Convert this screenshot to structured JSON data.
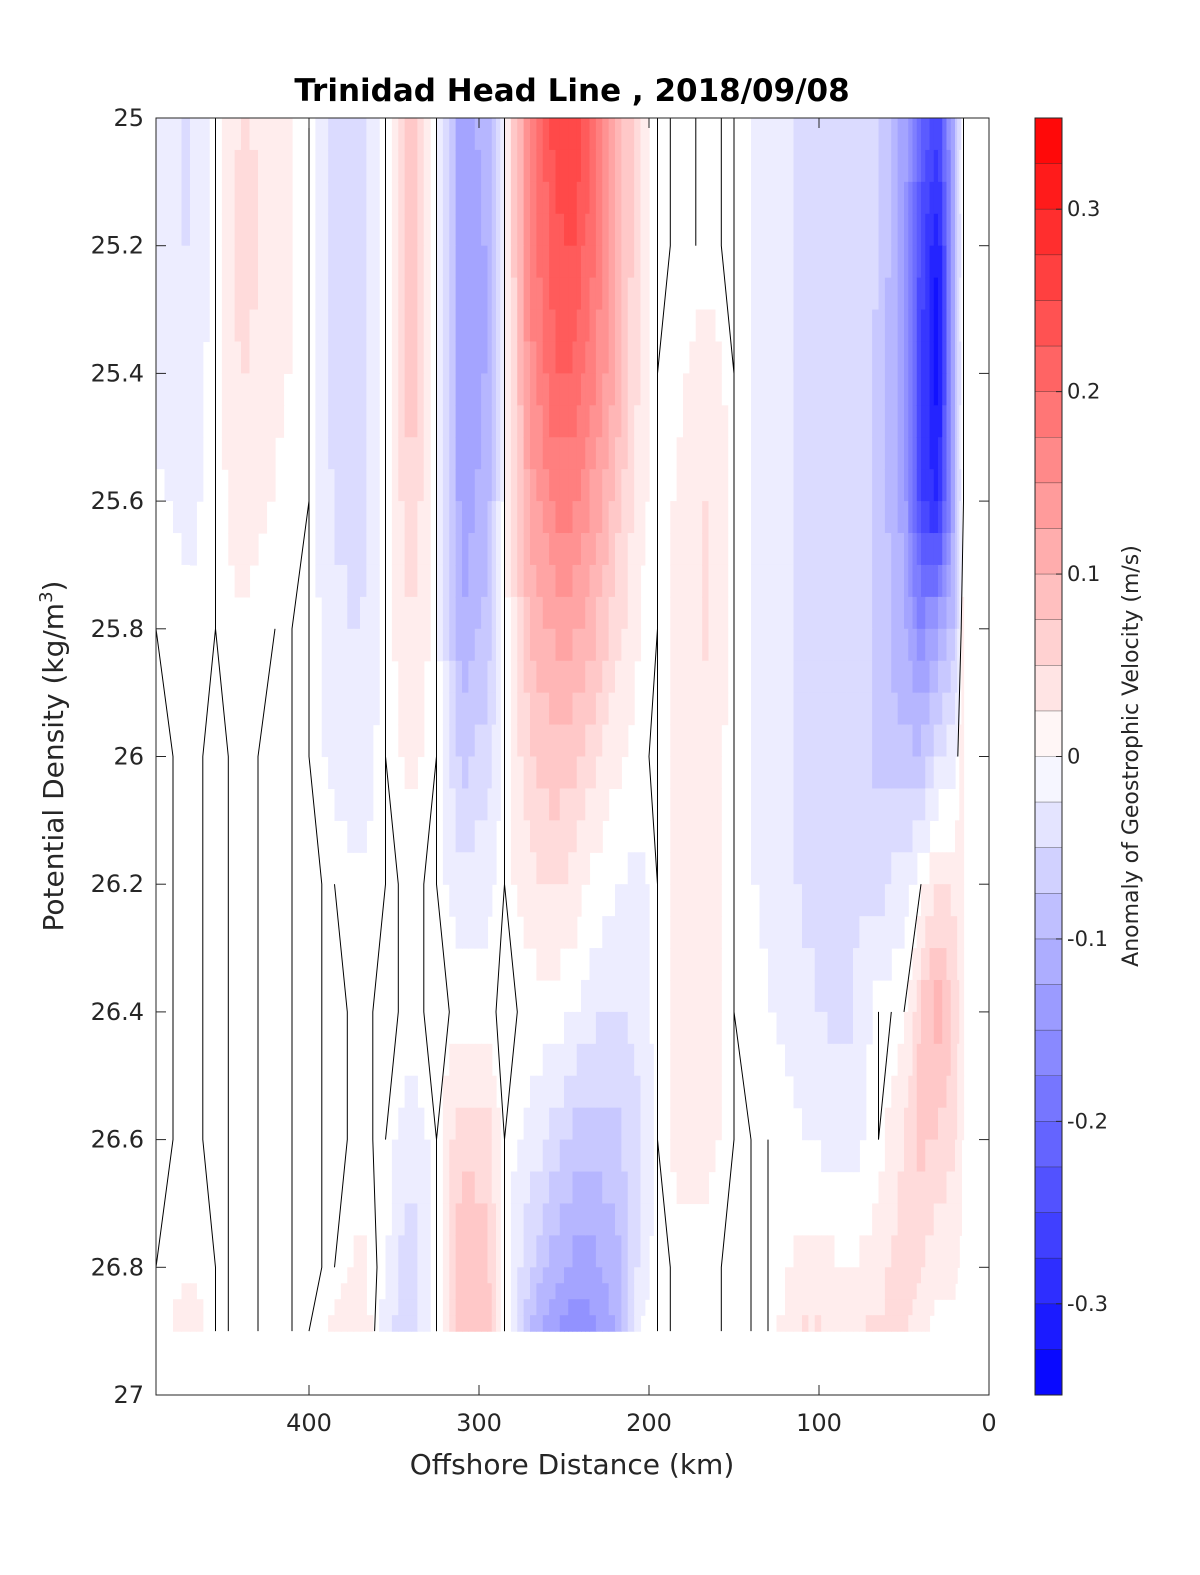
{
  "chart_data": {
    "type": "heatmap",
    "title": "Trinidad Head Line , 2018/09/08",
    "xlabel": "Offshore Distance (km)",
    "ylabel_main": "Potential Density (kg/m",
    "ylabel_sup": "3",
    "ylabel_close": ")",
    "xlim": [
      490,
      0
    ],
    "ylim": [
      25,
      27
    ],
    "y_reversed": true,
    "x_reversed": true,
    "x_ticks": [
      400,
      300,
      200,
      100,
      0
    ],
    "x_tick_labels": [
      "400",
      "300",
      "200",
      "100",
      "0"
    ],
    "y_ticks": [
      25,
      25.2,
      25.4,
      25.6,
      25.8,
      26,
      26.2,
      26.4,
      26.6,
      26.8,
      27
    ],
    "y_tick_labels": [
      "25",
      "25.2",
      "25.4",
      "25.6",
      "25.8",
      "26",
      "26.2",
      "26.4",
      "26.6",
      "26.8",
      "27"
    ],
    "colorbar": {
      "label": "Anomaly of Geostrophic Velocity (m/s)",
      "range": [
        -0.35,
        0.35
      ],
      "step": 0.025,
      "ticks": [
        0.3,
        0.2,
        0.1,
        0,
        -0.1,
        -0.2,
        -0.3
      ],
      "tick_labels": [
        "0.3",
        "0.2",
        "0.1",
        "0",
        "-0.1",
        "-0.2",
        "-0.3"
      ],
      "neg_color": "#0000ff",
      "pos_color": "#ff0000",
      "mid_color": "#ffffff"
    },
    "data_y_max": 26.9,
    "grid": false,
    "field": {
      "stations_km": [
        490,
        470,
        455,
        440,
        420,
        400,
        385,
        370,
        355,
        340,
        325,
        310,
        295,
        285,
        270,
        255,
        245,
        235,
        220,
        205,
        195,
        180,
        165,
        150,
        130,
        110,
        95,
        80,
        65,
        50,
        40,
        30,
        20,
        15
      ],
      "density_levels": [
        25.0,
        25.2,
        25.4,
        25.6,
        25.8,
        26.0,
        26.2,
        26.4,
        26.6,
        26.8,
        26.9
      ],
      "velocity": [
        [
          -0.03,
          -0.03,
          -0.02,
          -0.01,
          0.0,
          0.0,
          0.0,
          0.0,
          0.0,
          0.0,
          0.0
        ],
        [
          -0.04,
          -0.04,
          -0.03,
          -0.02,
          -0.01,
          0.0,
          0.0,
          0.0,
          0.0,
          0.01,
          0.03
        ],
        [
          0.0,
          0.0,
          0.0,
          0.0,
          0.0,
          0.0,
          0.0,
          0.0,
          0.0,
          0.0,
          0.0
        ],
        [
          0.04,
          0.05,
          0.04,
          0.03,
          0.01,
          0.0,
          0.0,
          0.0,
          0.0,
          0.0,
          0.0
        ],
        [
          0.03,
          0.03,
          0.02,
          0.01,
          0.0,
          0.0,
          0.0,
          0.0,
          0.0,
          0.0,
          0.0
        ],
        [
          0.0,
          0.0,
          0.0,
          0.0,
          0.0,
          0.0,
          0.0,
          0.0,
          0.0,
          0.0,
          0.0
        ],
        [
          -0.05,
          -0.05,
          -0.05,
          -0.04,
          -0.03,
          -0.02,
          0.0,
          0.0,
          0.0,
          0.0,
          0.02
        ],
        [
          -0.06,
          -0.06,
          -0.06,
          -0.05,
          -0.04,
          -0.03,
          -0.01,
          0.0,
          0.0,
          0.02,
          0.04
        ],
        [
          0.0,
          0.0,
          0.0,
          0.0,
          0.0,
          0.0,
          0.0,
          0.0,
          0.0,
          -0.01,
          -0.03
        ],
        [
          0.09,
          0.09,
          0.08,
          0.06,
          0.04,
          0.02,
          0.0,
          0.0,
          -0.03,
          -0.06,
          -0.06
        ],
        [
          0.0,
          0.0,
          0.0,
          0.0,
          0.0,
          0.0,
          0.0,
          0.0,
          0.0,
          0.0,
          0.0
        ],
        [
          -0.13,
          -0.14,
          -0.14,
          -0.13,
          -0.11,
          -0.07,
          -0.03,
          0.0,
          0.06,
          0.08,
          0.09
        ],
        [
          -0.1,
          -0.11,
          -0.11,
          -0.1,
          -0.08,
          -0.05,
          -0.02,
          0.0,
          0.05,
          0.07,
          0.08
        ],
        [
          0.0,
          0.0,
          0.0,
          0.0,
          0.0,
          0.0,
          0.0,
          0.0,
          0.0,
          0.0,
          0.0
        ],
        [
          0.17,
          0.17,
          0.15,
          0.12,
          0.09,
          0.06,
          0.03,
          0.0,
          -0.02,
          -0.06,
          -0.09
        ],
        [
          0.25,
          0.23,
          0.21,
          0.17,
          0.12,
          0.08,
          0.04,
          0.0,
          -0.05,
          -0.1,
          -0.14
        ],
        [
          0.26,
          0.24,
          0.21,
          0.17,
          0.12,
          0.07,
          0.03,
          -0.01,
          -0.07,
          -0.12,
          -0.16
        ],
        [
          0.22,
          0.2,
          0.18,
          0.14,
          0.1,
          0.05,
          0.01,
          -0.03,
          -0.08,
          -0.12,
          -0.15
        ],
        [
          0.12,
          0.12,
          0.11,
          0.08,
          0.05,
          0.02,
          -0.01,
          -0.04,
          -0.07,
          -0.1,
          -0.11
        ],
        [
          0.03,
          0.03,
          0.03,
          0.02,
          0.01,
          0.0,
          -0.02,
          -0.03,
          -0.04,
          -0.03,
          -0.01
        ],
        [
          0.0,
          0.0,
          0.0,
          0.0,
          0.0,
          0.0,
          0.0,
          0.0,
          0.0,
          0.0,
          0.0
        ],
        [
          0.0,
          0.0,
          0.01,
          0.02,
          0.03,
          0.03,
          0.03,
          0.02,
          0.03,
          0.0,
          0.0
        ],
        [
          0.0,
          0.0,
          0.03,
          0.04,
          0.04,
          0.03,
          0.02,
          0.02,
          0.02,
          0.0,
          0.0
        ],
        [
          0.0,
          0.0,
          0.0,
          0.0,
          0.0,
          0.0,
          0.0,
          0.0,
          0.0,
          0.0,
          0.0
        ],
        [
          -0.03,
          -0.03,
          -0.03,
          -0.03,
          -0.03,
          -0.03,
          -0.02,
          -0.01,
          0.0,
          0.0,
          0.0
        ],
        [
          -0.04,
          -0.04,
          -0.04,
          -0.04,
          -0.04,
          -0.04,
          -0.04,
          -0.03,
          -0.01,
          0.02,
          0.04
        ],
        [
          -0.04,
          -0.04,
          -0.05,
          -0.05,
          -0.05,
          -0.05,
          -0.05,
          -0.04,
          -0.02,
          0.02,
          0.04
        ],
        [
          -0.05,
          -0.05,
          -0.05,
          -0.05,
          -0.05,
          -0.05,
          -0.04,
          -0.04,
          -0.02,
          0.01,
          0.04
        ],
        [
          -0.06,
          -0.06,
          -0.07,
          -0.07,
          -0.07,
          -0.07,
          -0.05,
          0.0,
          0.0,
          0.03,
          0.04
        ],
        [
          -0.12,
          -0.13,
          -0.13,
          -0.12,
          -0.11,
          -0.08,
          -0.02,
          0.0,
          0.04,
          0.05,
          0.04
        ],
        [
          -0.2,
          -0.25,
          -0.26,
          -0.26,
          -0.16,
          -0.08,
          0.0,
          0.07,
          0.07,
          0.04,
          0.02
        ],
        [
          -0.25,
          -0.32,
          -0.33,
          -0.3,
          -0.12,
          -0.04,
          0.04,
          0.1,
          0.06,
          0.02,
          0.0
        ],
        [
          -0.1,
          -0.1,
          -0.1,
          -0.1,
          -0.08,
          -0.02,
          0.03,
          0.06,
          0.04,
          0.02,
          0.0
        ],
        [
          0.0,
          0.0,
          0.0,
          0.0,
          0.03,
          0.04,
          0.02,
          0.01,
          0.01,
          0.0,
          0.0
        ]
      ]
    }
  }
}
